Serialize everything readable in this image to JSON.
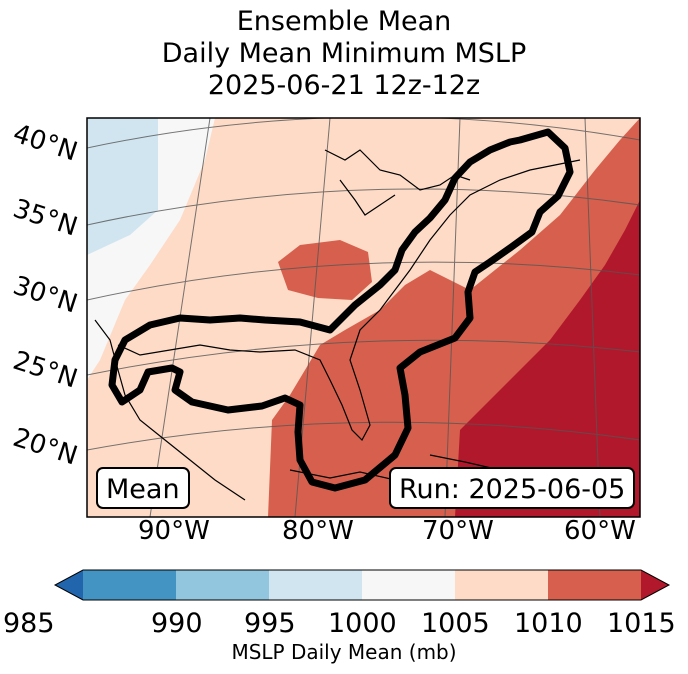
{
  "title": {
    "line1": "Ensemble Mean",
    "line2": "Daily Mean Minimum MSLP",
    "line3": "2025-06-21 12z-12z"
  },
  "map": {
    "lat_labels": [
      "40°N",
      "35°N",
      "30°N",
      "25°N",
      "20°N"
    ],
    "lon_labels": [
      "90°W",
      "80°W",
      "70°W",
      "60°W"
    ],
    "mode_label": "Mean",
    "run_label": "Run: 2025-06-05"
  },
  "colorbar": {
    "label": "MSLP Daily Mean (mb)",
    "ticks": [
      "985",
      "990",
      "995",
      "1000",
      "1005",
      "1010",
      "1015"
    ],
    "colors": [
      "#2166ac",
      "#4393c3",
      "#92c5de",
      "#d1e5f0",
      "#f7f7f7",
      "#fddbc7",
      "#d6604d",
      "#b2182b"
    ]
  },
  "legend_colors": {
    "below_1000": "#d1e5f0",
    "1000_1005": "#f7f7f7",
    "1005_1010": "#fddbc7",
    "1010_1015": "#d6604d",
    "above_1015": "#b2182b",
    "outline": "#000000"
  }
}
